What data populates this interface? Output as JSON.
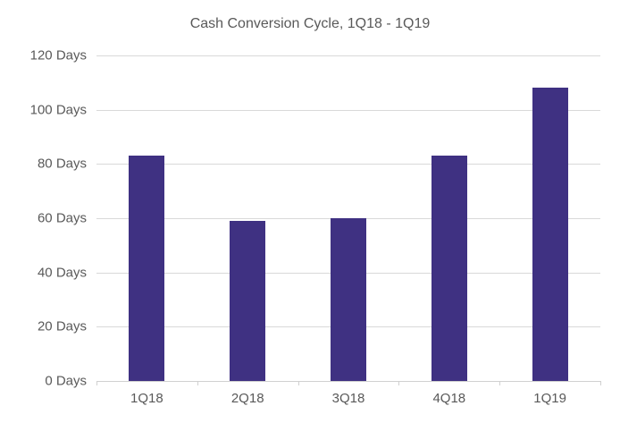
{
  "chart_data": {
    "type": "bar",
    "title": "Cash Conversion Cycle, 1Q18 - 1Q19",
    "categories": [
      "1Q18",
      "2Q18",
      "3Q18",
      "4Q18",
      "1Q19"
    ],
    "values": [
      83,
      59,
      60,
      83,
      108
    ],
    "unit": "Days",
    "ylim": [
      0,
      120
    ],
    "y_tick_step": 20,
    "y_tick_labels": [
      "0 Days",
      "20 Days",
      "40 Days",
      "60 Days",
      "80 Days",
      "100 Days",
      "120 Days"
    ],
    "xlabel": "",
    "ylabel": "",
    "grid": true,
    "legend_position": "none",
    "colors": {
      "bar": "#3f3182",
      "grid": "#d9d9d9",
      "axis": "#d0d0d0",
      "text": "#595959",
      "background": "#ffffff"
    }
  }
}
